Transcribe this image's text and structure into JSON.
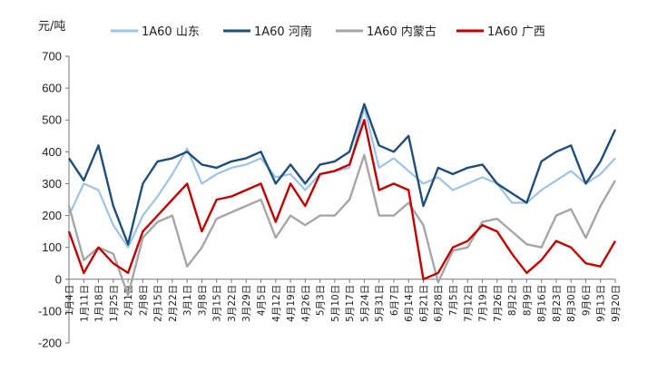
{
  "chart_data": {
    "type": "line",
    "unit_label": "元/吨",
    "ylim": [
      -200,
      700
    ],
    "yticks": [
      -200,
      -100,
      0,
      100,
      200,
      300,
      400,
      500,
      600,
      700
    ],
    "grid": false,
    "legend_position": "top",
    "x_tick_labels": [
      "1月4日",
      "1月11日",
      "1月18日",
      "1月25日",
      "2月1日",
      "2月8日",
      "2月15日",
      "2月22日",
      "3月1日",
      "3月8日",
      "3月15日",
      "3月22日",
      "3月29日",
      "4月5日",
      "4月12日",
      "4月19日",
      "4月26日",
      "5月3日",
      "5月10日",
      "5月17日",
      "5月24日",
      "5月31日",
      "6月7日",
      "6月14日",
      "6月21日",
      "6月28日",
      "7月5日",
      "7月12日",
      "7月19日",
      "7月26日",
      "8月2日",
      "8月9日",
      "8月16日",
      "8月23日",
      "8月30日",
      "9月6日",
      "9月13日",
      "9月20日"
    ],
    "x": [
      "1月4日",
      "1月11日",
      "1月18日",
      "1月25日",
      "2月1日",
      "2月8日",
      "2月15日",
      "2月22日",
      "3月1日",
      "3月8日",
      "3月15日",
      "3月22日",
      "3月29日",
      "4月5日",
      "4月12日",
      "4月19日",
      "4月26日",
      "5月3日",
      "5月10日",
      "5月17日",
      "5月24日",
      "5月31日",
      "6月7日",
      "6月14日",
      "6月21日",
      "6月28日",
      "7月5日",
      "7月12日",
      "7月19日",
      "7月26日",
      "8月2日",
      "8月9日",
      "8月16日",
      "8月23日",
      "8月30日",
      "9月6日",
      "9月13日",
      "9月20日"
    ],
    "series": [
      {
        "name": "1A60 山东",
        "color": "#9DC3E6",
        "values": [
          200,
          300,
          280,
          170,
          100,
          200,
          260,
          330,
          410,
          300,
          330,
          350,
          360,
          380,
          320,
          330,
          280,
          330,
          340,
          350,
          540,
          350,
          380,
          340,
          300,
          320,
          280,
          300,
          320,
          300,
          240,
          240,
          280,
          310,
          340,
          300,
          330,
          380
        ]
      },
      {
        "name": "1A60 河南",
        "color": "#1F4E79",
        "values": [
          380,
          310,
          420,
          230,
          110,
          300,
          370,
          380,
          400,
          360,
          350,
          370,
          380,
          400,
          300,
          360,
          300,
          360,
          370,
          400,
          550,
          420,
          400,
          450,
          230,
          350,
          330,
          350,
          360,
          300,
          270,
          240,
          370,
          400,
          420,
          300,
          370,
          470
        ]
      },
      {
        "name": "1A60 内蒙古",
        "color": "#A6A6A6",
        "values": [
          230,
          60,
          100,
          80,
          -50,
          130,
          180,
          200,
          40,
          100,
          190,
          210,
          230,
          250,
          130,
          200,
          170,
          200,
          200,
          250,
          390,
          200,
          200,
          240,
          170,
          -10,
          90,
          100,
          180,
          190,
          150,
          110,
          100,
          200,
          220,
          130,
          230,
          310
        ]
      },
      {
        "name": "1A60 广西",
        "color": "#C00000",
        "values": [
          150,
          20,
          100,
          50,
          20,
          150,
          200,
          250,
          300,
          150,
          250,
          260,
          280,
          300,
          180,
          300,
          230,
          330,
          340,
          360,
          500,
          280,
          300,
          280,
          0,
          20,
          100,
          120,
          170,
          150,
          80,
          20,
          60,
          120,
          100,
          50,
          40,
          120
        ]
      }
    ]
  }
}
